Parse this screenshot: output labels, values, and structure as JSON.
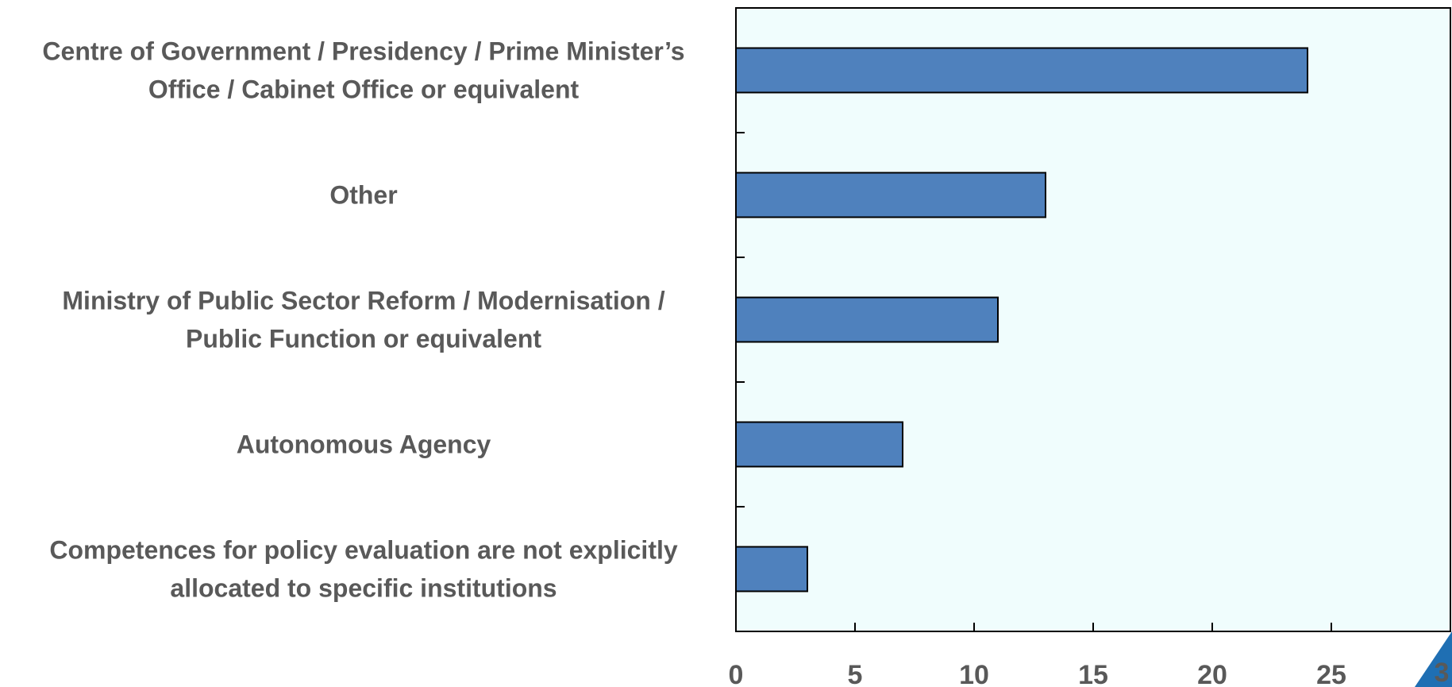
{
  "chart_data": {
    "type": "bar",
    "orientation": "horizontal",
    "categories": [
      [
        "Centre of Government / Presidency / Prime Minister’s",
        "Office / Cabinet Office or equivalent"
      ],
      [
        "Other"
      ],
      [
        "Ministry of Public Sector Reform / Modernisation /",
        "Public Function or equivalent"
      ],
      [
        "Autonomous Agency"
      ],
      [
        "Competences for policy evaluation are not explicitly",
        "allocated to specific institutions"
      ]
    ],
    "values": [
      24,
      13,
      11,
      7,
      3
    ],
    "xlim": [
      0,
      30
    ],
    "xticks": [
      "0",
      "5",
      "10",
      "15",
      "20",
      "25"
    ],
    "grid": false,
    "legend": "none",
    "colors": {
      "bar_fill": "#4f81bd",
      "bar_stroke": "#000000",
      "plot_background": "#f0fdfd",
      "axis": "#000000",
      "label": "#595959",
      "corner_triangle": "#1f6fb3"
    }
  },
  "corner_text": "3"
}
